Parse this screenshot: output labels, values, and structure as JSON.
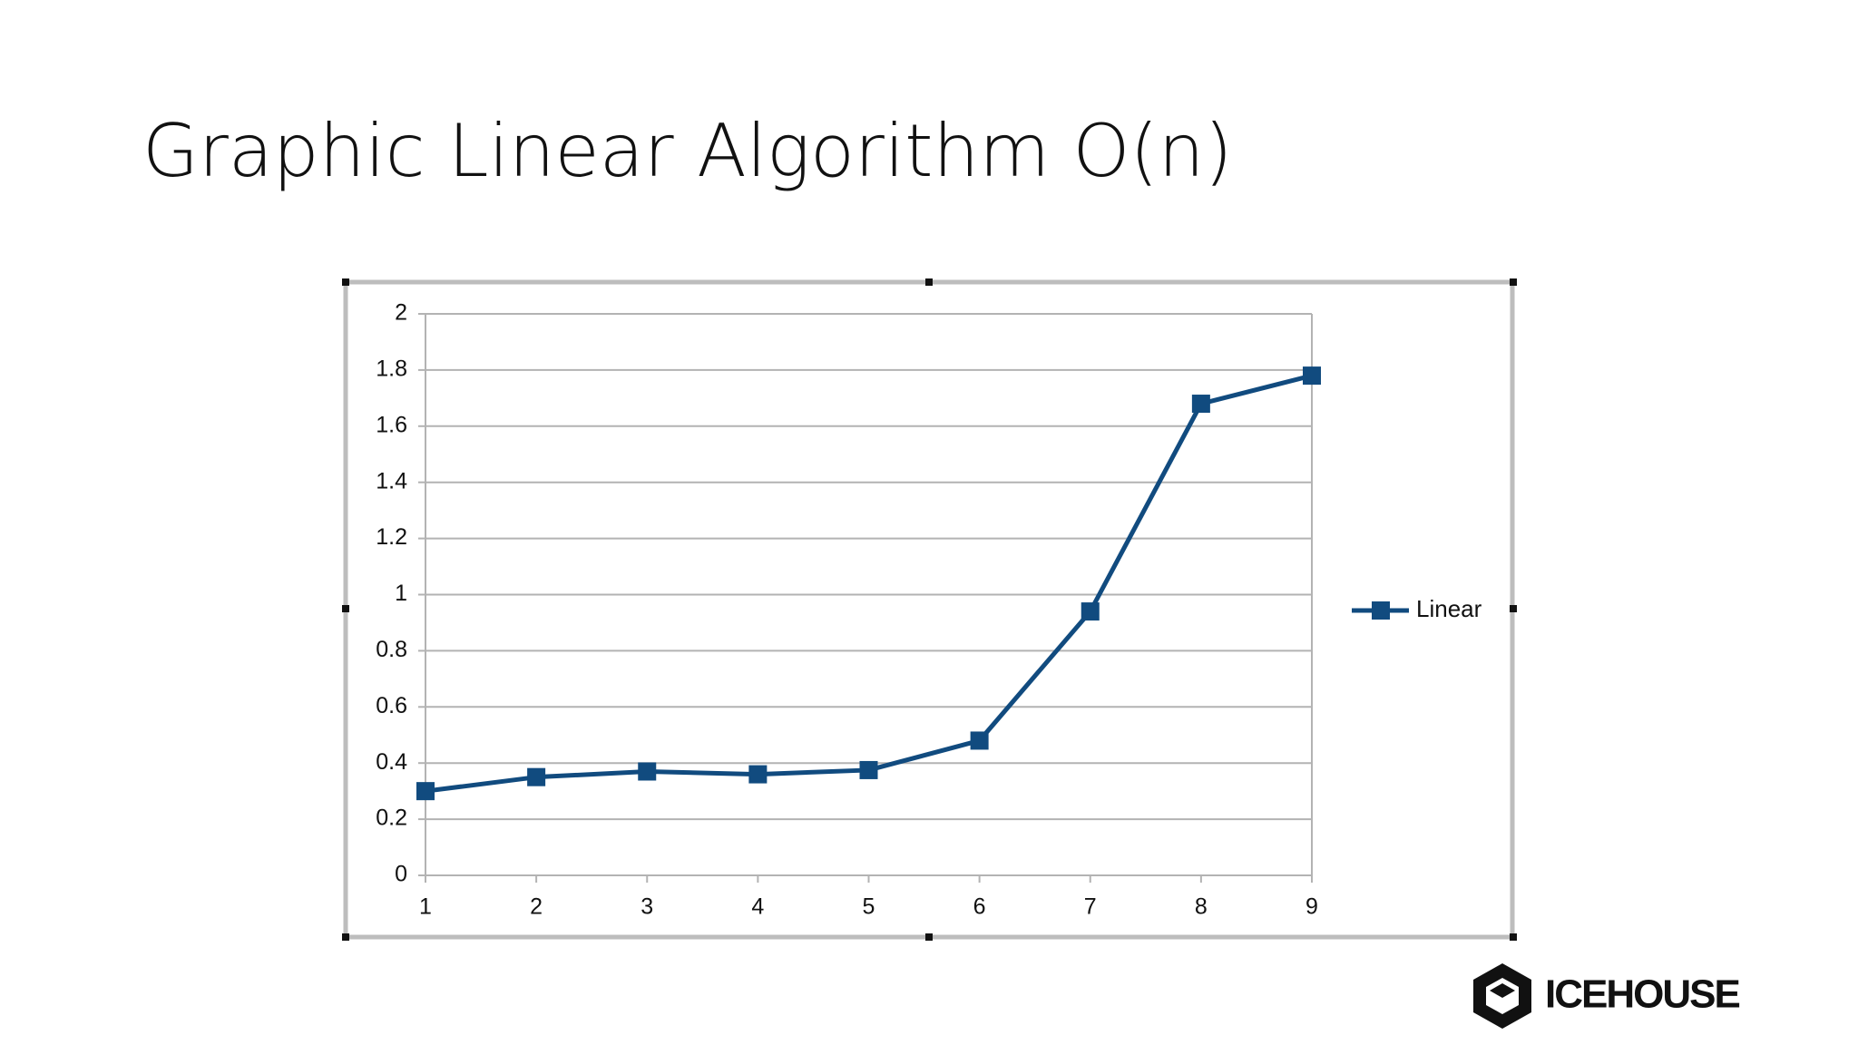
{
  "chart_data": {
    "type": "line",
    "title": "Graphic Linear Algorithm O(n)",
    "x": [
      1,
      2,
      3,
      4,
      5,
      6,
      7,
      8,
      9
    ],
    "series": [
      {
        "name": "Linear",
        "color": "#114b7f",
        "values": [
          0.3,
          0.35,
          0.37,
          0.36,
          0.375,
          0.48,
          0.94,
          1.68,
          1.78
        ]
      }
    ],
    "xlim": [
      1,
      9
    ],
    "xticks": [
      1,
      2,
      3,
      4,
      5,
      6,
      7,
      8,
      9
    ],
    "ylim": [
      0,
      2
    ],
    "yticks": [
      0,
      0.2,
      0.4,
      0.6,
      0.8,
      1,
      1.2,
      1.4,
      1.6,
      1.8,
      2
    ],
    "grid": true,
    "legend": "right"
  },
  "logo": "ICEHOUSE"
}
